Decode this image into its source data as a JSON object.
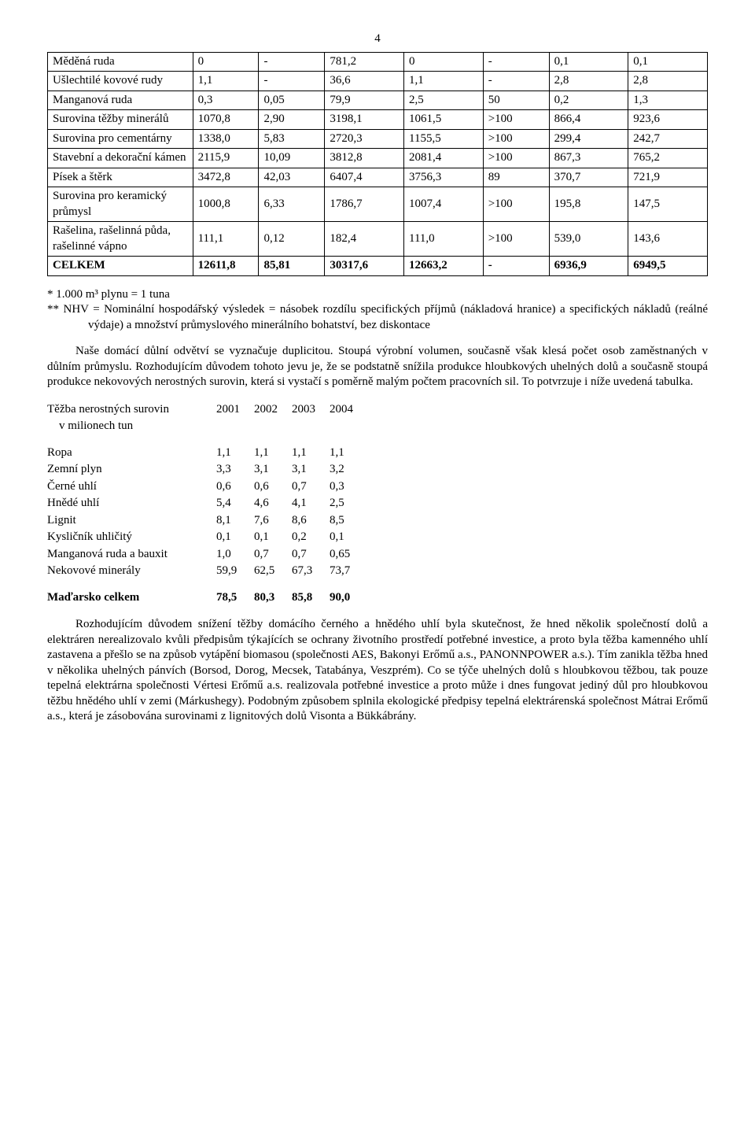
{
  "page_number": "4",
  "main_table": {
    "col_widths": [
      "22%",
      "10%",
      "10%",
      "12%",
      "12%",
      "10%",
      "12%",
      "12%"
    ],
    "rows": [
      {
        "label": "Měděná ruda",
        "cells": [
          "0",
          "-",
          "781,2",
          "0",
          "-",
          "0,1",
          "0,1"
        ]
      },
      {
        "label": "Ušlechtilé kovové rudy",
        "cells": [
          "1,1",
          "-",
          "36,6",
          "1,1",
          "-",
          "2,8",
          "2,8"
        ]
      },
      {
        "label": "Manganová ruda",
        "cells": [
          "0,3",
          "0,05",
          "79,9",
          "2,5",
          "50",
          "0,2",
          "1,3"
        ]
      },
      {
        "label": "Surovina těžby minerálů",
        "cells": [
          "1070,8",
          "2,90",
          "3198,1",
          "1061,5",
          ">100",
          "866,4",
          "923,6"
        ]
      },
      {
        "label": "Surovina pro cementárny",
        "cells": [
          "1338,0",
          "5,83",
          "2720,3",
          "1155,5",
          ">100",
          "299,4",
          "242,7"
        ]
      },
      {
        "label": "Stavební a dekorační kámen",
        "cells": [
          "2115,9",
          "10,09",
          "3812,8",
          "2081,4",
          ">100",
          "867,3",
          "765,2"
        ]
      },
      {
        "label": "Písek a štěrk",
        "cells": [
          "3472,8",
          "42,03",
          "6407,4",
          "3756,3",
          "89",
          "370,7",
          "721,9"
        ]
      },
      {
        "label": "Surovina pro keramický průmysl",
        "cells": [
          "1000,8",
          "6,33",
          "1786,7",
          "1007,4",
          ">100",
          "195,8",
          "147,5"
        ]
      },
      {
        "label": "Rašelina, rašelinná půda, rašelinné vápno",
        "cells": [
          "111,1",
          "0,12",
          "182,4",
          "111,0",
          ">100",
          "539,0",
          "143,6"
        ]
      }
    ],
    "total_row": {
      "label": "CELKEM",
      "cells": [
        "12611,8",
        "85,81",
        "30317,6",
        "12663,2",
        "-",
        "6936,9",
        "6949,5"
      ]
    }
  },
  "notes": {
    "n1": "* 1.000 m³ plynu = 1 tuna",
    "n2": "** NHV = Nominální hospodářský výsledek = násobek rozdílu specifických příjmů (nákladová hranice) a specifických nákladů (reálné výdaje) a množství průmyslového minerálního bohatství, bez diskontace"
  },
  "para1": "Naše domácí důlní odvětví se vyznačuje duplicitou. Stoupá výrobní volumen, současně však klesá počet osob zaměstnaných v důlním průmyslu. Rozhodujícím důvodem tohoto jevu je, že se podstatně snížila produkce hloubkových uhelných dolů a současně stoupá produkce nekovových nerostných surovin, která si vystačí s poměrně malým počtem pracovních sil. To potvrzuje i níže uvedená tabulka.",
  "extraction_table": {
    "header": {
      "label": "Těžba nerostných surovin",
      "sub": "v milionech tun",
      "years": [
        "2001",
        "2002",
        "2003",
        "2004"
      ]
    },
    "rows": [
      {
        "label": "Ropa",
        "cells": [
          "1,1",
          "1,1",
          "1,1",
          "1,1"
        ]
      },
      {
        "label": "Zemní plyn",
        "cells": [
          "3,3",
          "3,1",
          "3,1",
          "3,2"
        ]
      },
      {
        "label": "Černé uhlí",
        "cells": [
          "0,6",
          "0,6",
          "0,7",
          "0,3"
        ]
      },
      {
        "label": "Hnědé uhlí",
        "cells": [
          "5,4",
          "4,6",
          "4,1",
          "2,5"
        ]
      },
      {
        "label": "Lignit",
        "cells": [
          "8,1",
          "7,6",
          "8,6",
          "8,5"
        ]
      },
      {
        "label": "Kysličník uhličitý",
        "cells": [
          "0,1",
          "0,1",
          "0,2",
          "0,1"
        ]
      },
      {
        "label": "Manganová ruda a bauxit",
        "cells": [
          "1,0",
          "0,7",
          "0,7",
          "0,65"
        ]
      },
      {
        "label": "Nekovové minerály",
        "cells": [
          "59,9",
          "62,5",
          "67,3",
          "73,7"
        ]
      }
    ],
    "total": {
      "label": "Maďarsko celkem",
      "cells": [
        "78,5",
        "80,3",
        "85,8",
        "90,0"
      ]
    }
  },
  "para2": "Rozhodujícím důvodem snížení těžby domácího černého a hnědého uhlí byla skutečnost, že hned několik společností dolů a elektráren nerealizovalo kvůli předpisům týkajících se ochrany životního prostředí potřebné investice, a proto byla těžba kamenného uhlí zastavena a přešlo se na způsob vytápění biomasou (společnosti AES, Bakonyi Erőmű a.s., PANONNPOWER a.s.). Tím zanikla těžba hned v několika uhelných pánvích (Borsod, Dorog, Mecsek, Tatabánya, Veszprém). Co se týče uhelných dolů s hloubkovou těžbou, tak pouze tepelná elektrárna společnosti Vértesi Erőmű a.s. realizovala potřebné investice a proto může i dnes fungovat jediný důl pro hloubkovou těžbu hnědého uhlí v zemi (Márkushegy). Podobným způsobem splnila ekologické předpisy tepelná elektrárenská společnost Mátrai Erőmű a.s., která je zásobována surovinami z lignitových dolů Visonta a Bükkábrány."
}
